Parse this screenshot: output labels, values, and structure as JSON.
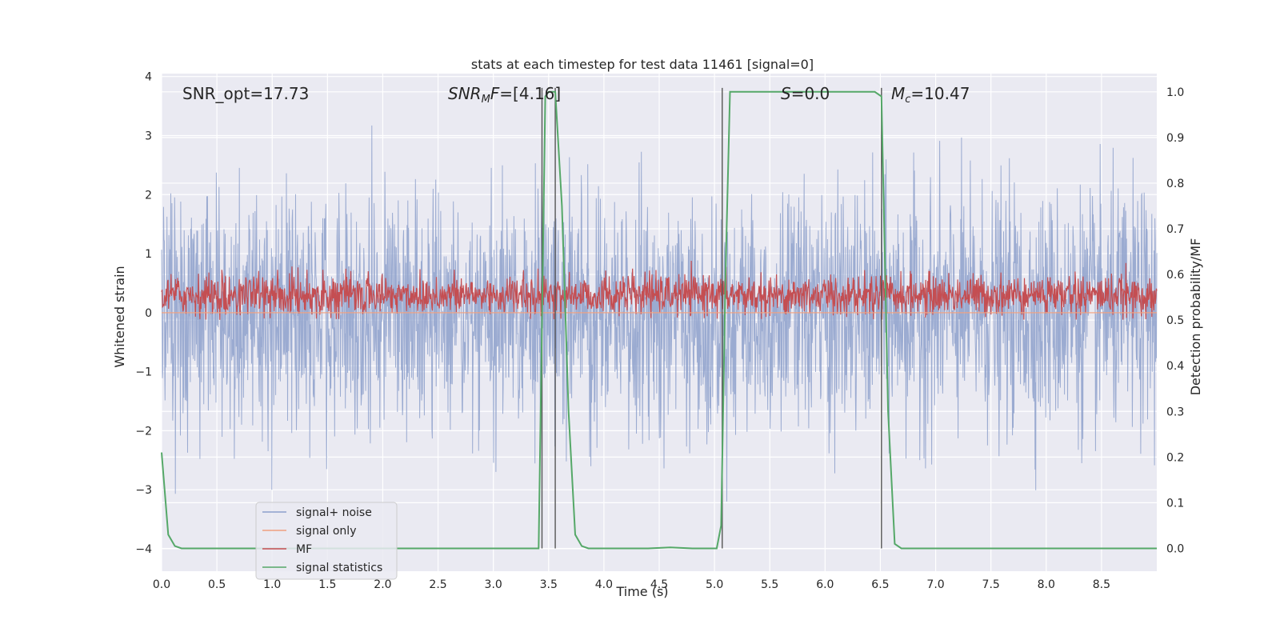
{
  "chart_data": {
    "type": "line",
    "title": "stats at each timestep for test data 11461 [signal=0]",
    "xlabel": "Time (s)",
    "ylabel": "Whitened strain",
    "ylabel_right": "Detection probability/MF",
    "xlim": [
      0,
      9
    ],
    "ylim": [
      -4.38,
      4.05
    ],
    "ylim_right": [
      -0.05,
      1.04
    ],
    "x_ticks": [
      "0.0",
      "0.5",
      "1.0",
      "1.5",
      "2.0",
      "2.5",
      "3.0",
      "3.5",
      "4.0",
      "4.5",
      "5.0",
      "5.5",
      "6.0",
      "6.5",
      "7.0",
      "7.5",
      "8.0",
      "8.5"
    ],
    "y_ticks": [
      "4",
      "3",
      "2",
      "1",
      "0",
      "−1",
      "−2",
      "−3",
      "−4"
    ],
    "y_ticks_right": [
      "1.0",
      "0.9",
      "0.8",
      "0.7",
      "0.6",
      "0.5",
      "0.4",
      "0.3",
      "0.2",
      "0.1",
      "0.0"
    ],
    "annotations": {
      "snr_opt": "SNR_opt=17.73",
      "snr_mf": "=[4.16]",
      "s": "=0.0",
      "mc": "=10.47"
    },
    "annotation_math": {
      "snr_mf_main": "SNR",
      "snr_mf_sub": "M",
      "snr_mf_tail": "F",
      "s_main": "S",
      "mc_main": "M",
      "mc_sub": "c"
    },
    "vlines_x": [
      3.44,
      3.56,
      5.07,
      6.51
    ],
    "series": [
      {
        "name": "signal+ noise",
        "color": "#8da0cb",
        "description_range": [
          -3.2,
          3.6
        ]
      },
      {
        "name": "signal only",
        "color": "#f0a080",
        "constant": 0.0
      },
      {
        "name": "MF",
        "color": "#c44e52",
        "axis": "right",
        "range": [
          0.5,
          0.63
        ]
      },
      {
        "name": "signal statistics",
        "color": "#55a868",
        "axis": "right",
        "x": [
          0.0,
          0.06,
          0.12,
          0.18,
          0.24,
          0.3,
          3.35,
          3.41,
          3.44,
          3.47,
          3.5,
          3.56,
          3.62,
          3.68,
          3.74,
          3.8,
          3.86,
          4.4,
          4.6,
          4.8,
          5.02,
          5.06,
          5.1,
          5.14,
          6.3,
          6.45,
          6.51,
          6.57,
          6.63,
          6.69,
          9.0
        ],
        "y": [
          0.21,
          0.03,
          0.005,
          0.0,
          0.0,
          0.0,
          0.0,
          0.0,
          0.5,
          0.99,
          1.0,
          1.0,
          0.75,
          0.3,
          0.03,
          0.005,
          0.0,
          0.0,
          0.002,
          0.0,
          0.0,
          0.05,
          0.6,
          1.0,
          1.0,
          1.0,
          0.99,
          0.3,
          0.01,
          0.0,
          0.0
        ]
      }
    ],
    "legend_position": "lower-left",
    "grid": true
  }
}
